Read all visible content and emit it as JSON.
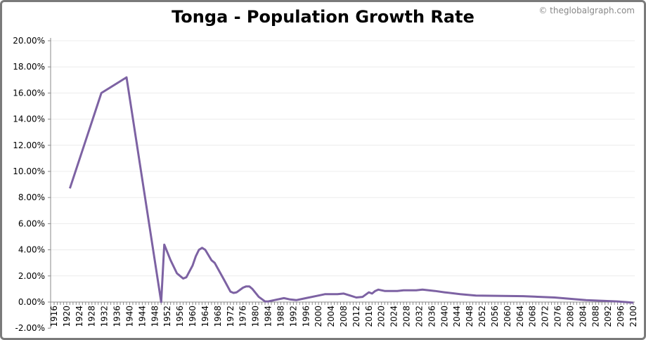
{
  "title": "Tonga - Population Growth Rate",
  "copyright": "© theglobalgraph.com",
  "chart_data": {
    "type": "line",
    "title": "Tonga - Population Growth Rate",
    "xlabel": "",
    "ylabel": "",
    "xlim": [
      1916,
      2100
    ],
    "ylim": [
      -2,
      20
    ],
    "y_tick_format": "percent, 2 decimals",
    "y_ticks": [
      -2,
      0,
      2,
      4,
      6,
      8,
      10,
      12,
      14,
      16,
      18,
      20
    ],
    "x_tick_step": 4,
    "grid": "horizontal",
    "legend": "none",
    "color": "#7d62a3",
    "x": [
      1921,
      1931,
      1939,
      1950,
      1951,
      1953,
      1955,
      1957,
      1958,
      1960,
      1961,
      1962,
      1963,
      1964,
      1966,
      1967,
      1970,
      1972,
      1973,
      1974,
      1976,
      1977,
      1978,
      1979,
      1981,
      1983,
      1984,
      1986,
      1989,
      1991,
      1993,
      1996,
      2000,
      2002,
      2006,
      2008,
      2010,
      2012,
      2014,
      2016,
      2017,
      2018,
      2019,
      2021,
      2025,
      2027,
      2031,
      2033,
      2035,
      2037,
      2040,
      2045,
      2050,
      2065,
      2075,
      2085,
      2095,
      2100
    ],
    "y": [
      8.7,
      16.0,
      17.2,
      0.0,
      4.4,
      3.2,
      2.2,
      1.8,
      1.9,
      2.8,
      3.5,
      4.0,
      4.15,
      4.0,
      3.2,
      3.0,
      1.7,
      0.8,
      0.7,
      0.75,
      1.1,
      1.2,
      1.2,
      1.0,
      0.4,
      0.05,
      0.05,
      0.15,
      0.3,
      0.2,
      0.15,
      0.3,
      0.5,
      0.6,
      0.6,
      0.65,
      0.5,
      0.35,
      0.4,
      0.75,
      0.65,
      0.85,
      0.95,
      0.85,
      0.85,
      0.9,
      0.9,
      0.95,
      0.9,
      0.85,
      0.75,
      0.6,
      0.5,
      0.45,
      0.35,
      0.15,
      0.05,
      -0.05
    ]
  }
}
